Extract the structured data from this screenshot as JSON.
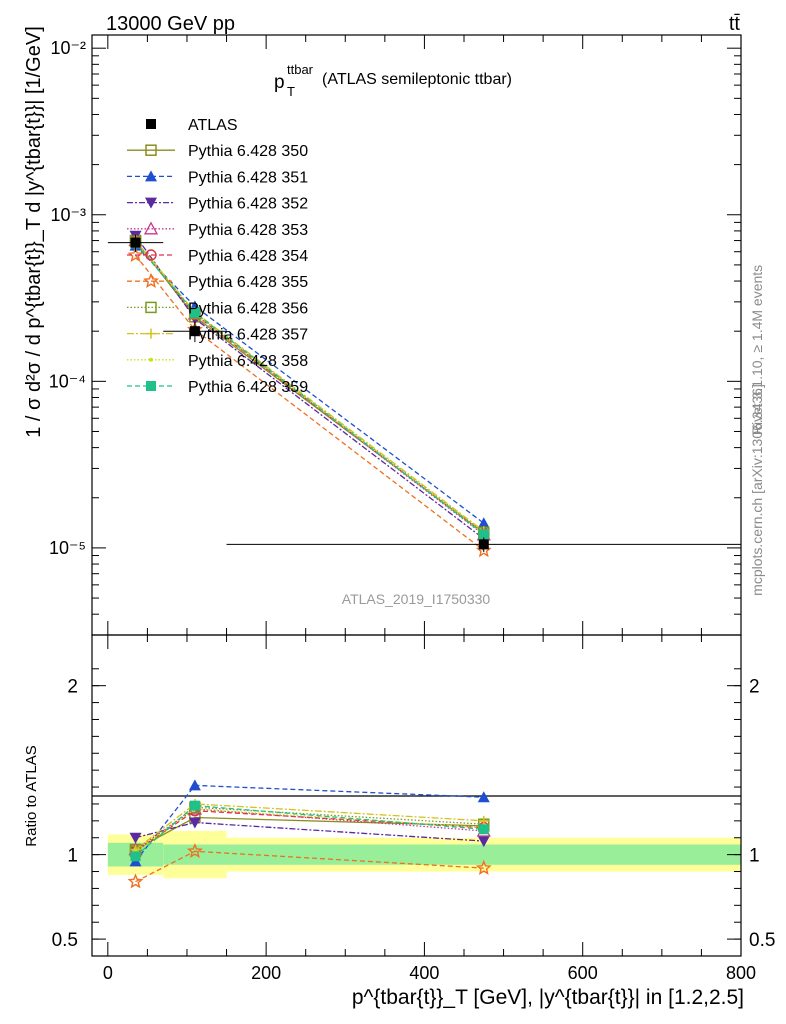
{
  "header": {
    "left": "13000 GeV pp",
    "right": "tt̄"
  },
  "side_labels": {
    "rivet": "Rivet 3.1.10, ≥ 1.4M events",
    "mcplots": "mcplots.cern.ch [arXiv:1306.3436]"
  },
  "chart_data": {
    "type": "line",
    "title_main": "p",
    "title_sup": "ttbar",
    "title_sub": "T",
    "title_rest": " (ATLAS semileptonic ttbar)",
    "watermark": "ATLAS_2019_I1750330",
    "ylabel": "1 / σ d²σ / d p^{tbar{t}}_T d |y^{tbar{t}}| [1/GeV]",
    "xlabel": "p^{tbar{t}}_T [GeV], |y^{tbar{t}}| in [1.2,2.5]",
    "ratio_ylabel": "Ratio to ATLAS",
    "xlim": [
      -20,
      800
    ],
    "ylim": [
      3e-06,
      0.012
    ],
    "yscale": "log",
    "ratio_ylim": [
      0.4,
      2.3
    ],
    "xticks": [
      "0",
      "200",
      "400",
      "600",
      "800"
    ],
    "yticks": [
      "10⁻⁵",
      "10⁻⁴",
      "10⁻³",
      "10⁻²"
    ],
    "ratio_yticks": [
      "0.5",
      "1",
      "2"
    ],
    "x": [
      35,
      110,
      475
    ],
    "bins": [
      [
        0,
        70
      ],
      [
        70,
        150
      ],
      [
        150,
        800
      ]
    ],
    "data": {
      "name": "ATLAS",
      "values": [
        0.00068,
        0.0002,
        1.05e-05
      ]
    },
    "bands": {
      "inner": [
        0.07,
        0.06,
        0.06
      ],
      "outer": [
        0.12,
        0.14,
        0.1
      ]
    },
    "series": [
      {
        "name": "Pythia 6.428 350",
        "color": "#8c8c1f",
        "marker": "square-open",
        "dash": "",
        "ratio": [
          1.03,
          1.22,
          1.17
        ]
      },
      {
        "name": "Pythia 6.428 351",
        "color": "#1f4fcf",
        "marker": "triangle-up",
        "dash": "5,3",
        "ratio": [
          0.96,
          1.41,
          1.34
        ]
      },
      {
        "name": "Pythia 6.428 352",
        "color": "#5a2aa0",
        "marker": "triangle-down",
        "dash": "6,2,2,2",
        "ratio": [
          1.1,
          1.19,
          1.08
        ]
      },
      {
        "name": "Pythia 6.428 353",
        "color": "#c8388c",
        "marker": "triangle-open",
        "dash": "1.5,2",
        "ratio": [
          1.03,
          1.27,
          1.14
        ]
      },
      {
        "name": "Pythia 6.428 354",
        "color": "#e0304a",
        "marker": "circle-open",
        "dash": "5,3",
        "ratio": [
          1.02,
          1.26,
          1.16
        ]
      },
      {
        "name": "Pythia 6.428 355",
        "color": "#f07020",
        "marker": "star",
        "dash": "5,3",
        "ratio": [
          0.84,
          1.02,
          0.92
        ]
      },
      {
        "name": "Pythia 6.428 356",
        "color": "#7a9a20",
        "marker": "square-open",
        "dash": "1.5,2",
        "ratio": [
          1.02,
          1.28,
          1.18
        ]
      },
      {
        "name": "Pythia 6.428 357",
        "color": "#d6c21a",
        "marker": "cross-dot",
        "dash": "7,2,2,2",
        "ratio": [
          1.03,
          1.3,
          1.2
        ]
      },
      {
        "name": "Pythia 6.428 358",
        "color": "#c6e41a",
        "marker": "dot",
        "dash": "1.5,2",
        "ratio": [
          1.02,
          1.27,
          1.16
        ]
      },
      {
        "name": "Pythia 6.428 359",
        "color": "#20c08a",
        "marker": "square",
        "dash": "5,3",
        "ratio": [
          0.99,
          1.29,
          1.15
        ]
      }
    ]
  }
}
